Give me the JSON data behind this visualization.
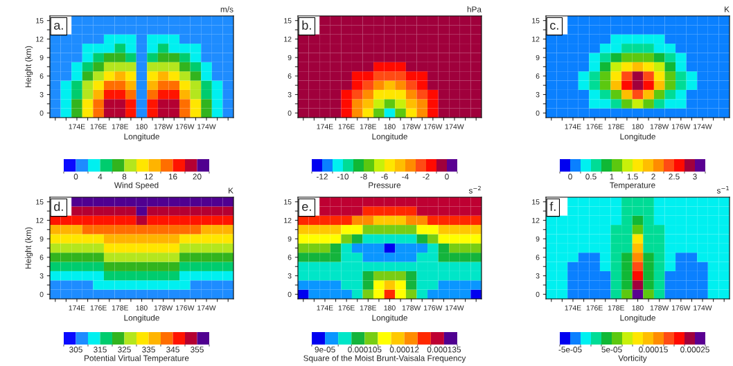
{
  "chart_data": [
    {
      "type": "heatmap",
      "title": "a.",
      "subtitle": "m/s",
      "xlabel": "Longitude",
      "ylabel": "Height (km)",
      "clabel": "Wind Speed",
      "categories": [
        null,
        null,
        "174E",
        null,
        "176E",
        null,
        "178E",
        null,
        "180",
        null,
        "178W",
        null,
        "176W",
        null,
        "174W",
        null,
        null
      ],
      "y_categories": [
        "15",
        null,
        "12",
        null,
        "9",
        null,
        "6",
        null,
        "3",
        null,
        "0"
      ],
      "clim": [
        -2,
        22
      ],
      "cticks": [
        0,
        4,
        8,
        12,
        16,
        20
      ],
      "colors": [
        "#0a0aff",
        "#1e8cff",
        "#00f0f0",
        "#00cc6e",
        "#32b41e",
        "#b4e61e",
        "#ffe600",
        "#ffb400",
        "#ff6e00",
        "#ff1400",
        "#b40032",
        "#500090"
      ],
      "cells": [
        [
          null,
          null,
          1,
          1,
          1,
          1,
          1,
          1,
          1,
          1,
          1,
          1,
          1,
          1,
          1,
          1,
          1
        ],
        [
          null,
          null,
          1,
          1,
          1,
          1,
          1,
          1,
          1,
          1,
          1,
          1,
          1,
          1,
          1,
          1,
          1
        ],
        [
          1,
          1,
          1,
          1,
          1,
          3,
          3,
          3,
          1,
          3,
          3,
          3,
          1,
          1,
          1,
          1,
          1
        ],
        [
          1,
          1,
          1,
          3,
          3,
          3,
          5,
          3,
          1,
          3,
          5,
          3,
          3,
          3,
          1,
          1,
          1
        ],
        [
          1,
          1,
          1,
          3,
          5,
          7,
          7,
          5,
          1,
          5,
          7,
          7,
          5,
          3,
          1,
          1,
          1
        ],
        [
          1,
          1,
          3,
          5,
          7,
          9,
          9,
          9,
          1,
          9,
          9,
          9,
          7,
          5,
          3,
          1,
          1
        ],
        [
          1,
          1,
          3,
          7,
          9,
          11,
          13,
          11,
          1,
          11,
          13,
          11,
          9,
          7,
          3,
          1,
          1
        ],
        [
          1,
          3,
          5,
          9,
          11,
          15,
          15,
          13,
          1,
          13,
          15,
          15,
          11,
          9,
          5,
          3,
          1
        ],
        [
          1,
          3,
          5,
          9,
          13,
          17,
          17,
          15,
          1,
          15,
          17,
          17,
          13,
          9,
          5,
          3,
          1
        ],
        [
          1,
          3,
          7,
          11,
          15,
          19,
          19,
          17,
          1,
          17,
          19,
          19,
          15,
          11,
          7,
          3,
          1
        ],
        [
          1,
          3,
          7,
          11,
          15,
          19,
          19,
          17,
          1,
          17,
          19,
          19,
          15,
          11,
          7,
          3,
          1
        ]
      ]
    },
    {
      "type": "heatmap",
      "title": "b.",
      "subtitle": "hPa",
      "xlabel": "Longitude",
      "clabel": "Pressure",
      "categories": [
        null,
        null,
        "174E",
        null,
        "176E",
        null,
        "178E",
        null,
        "180",
        null,
        "178W",
        null,
        "176W",
        null,
        "174W",
        null,
        null
      ],
      "y_categories": [
        "15",
        null,
        "12",
        null,
        "9",
        null,
        "6",
        null,
        "3",
        null,
        "0"
      ],
      "clim": [
        -13,
        1
      ],
      "cticks": [
        -12,
        -10,
        -8,
        -6,
        -4,
        -2,
        0
      ],
      "colors": [
        "#0000f0",
        "#0a80ff",
        "#00f0f0",
        "#00dc96",
        "#10b836",
        "#5cc810",
        "#c8f00a",
        "#ffe600",
        "#ffbe00",
        "#ff8c00",
        "#ff4b14",
        "#ff0a00",
        "#a0003c",
        "#5a0091"
      ],
      "cells": [
        [
          null,
          null,
          -0.5,
          -0.5,
          -0.5,
          -0.5,
          -0.5,
          -0.5,
          -0.5,
          -0.5,
          -0.5,
          -0.5,
          -0.5,
          -0.5,
          -0.5,
          -0.5,
          -0.5
        ],
        [
          null,
          null,
          -0.5,
          -0.5,
          -0.5,
          -0.5,
          -0.5,
          -0.5,
          -0.5,
          -0.5,
          -0.5,
          -0.5,
          -0.5,
          -0.5,
          -0.5,
          -0.5,
          -0.5
        ],
        [
          -0.5,
          -0.5,
          -0.5,
          -0.5,
          -0.5,
          -0.5,
          -0.5,
          -0.5,
          -0.5,
          -0.5,
          -0.5,
          -0.5,
          -0.5,
          -0.5,
          -0.5,
          -0.5,
          -0.5
        ],
        [
          -0.5,
          -0.5,
          -0.5,
          -0.5,
          -0.5,
          -0.5,
          -0.5,
          -0.5,
          -0.5,
          -0.5,
          -0.5,
          -0.5,
          -0.5,
          -0.5,
          -0.5,
          -0.5,
          -0.5
        ],
        [
          -0.5,
          -0.5,
          -0.5,
          -0.5,
          -0.5,
          -0.5,
          -0.5,
          -0.5,
          -0.5,
          -0.5,
          -0.5,
          -0.5,
          -0.5,
          -0.5,
          -0.5,
          -0.5,
          -0.5
        ],
        [
          -0.5,
          -0.5,
          -0.5,
          -0.5,
          -0.5,
          -0.5,
          -0.5,
          -1.5,
          -1.5,
          -1.5,
          -0.5,
          -0.5,
          -0.5,
          -0.5,
          -0.5,
          -0.5,
          -0.5
        ],
        [
          -0.5,
          -0.5,
          -0.5,
          -0.5,
          -0.5,
          -1.5,
          -1.5,
          -2.5,
          -2.5,
          -2.5,
          -1.5,
          -1.5,
          -0.5,
          -0.5,
          -0.5,
          -0.5,
          -0.5
        ],
        [
          -0.5,
          -0.5,
          -0.5,
          -0.5,
          -0.5,
          -1.5,
          -2.5,
          -3.5,
          -4.5,
          -3.5,
          -2.5,
          -1.5,
          -0.5,
          -0.5,
          -0.5,
          -0.5,
          -0.5
        ],
        [
          -0.5,
          -0.5,
          -0.5,
          -0.5,
          -1.5,
          -2.5,
          -3.5,
          -5.5,
          -5.5,
          -5.5,
          -3.5,
          -2.5,
          -1.5,
          -0.5,
          -0.5,
          -0.5,
          -0.5
        ],
        [
          -0.5,
          -0.5,
          -0.5,
          -0.5,
          -1.5,
          -3.5,
          -4.5,
          -6.5,
          -7.5,
          -6.5,
          -4.5,
          -3.5,
          -1.5,
          -0.5,
          -0.5,
          -0.5,
          -0.5
        ],
        [
          -0.5,
          -0.5,
          -0.5,
          -0.5,
          -1.5,
          -3.5,
          -5.5,
          -7.5,
          -10.5,
          -7.5,
          -5.5,
          -3.5,
          -1.5,
          -0.5,
          -0.5,
          -0.5,
          -0.5
        ]
      ]
    },
    {
      "type": "heatmap",
      "title": "c.",
      "subtitle": "K",
      "xlabel": "Longitude",
      "clabel": "Temperature",
      "categories": [
        null,
        null,
        "174E",
        null,
        "176E",
        null,
        "178E",
        null,
        "180",
        null,
        "178W",
        null,
        "176W",
        null,
        "174W",
        null,
        null
      ],
      "y_categories": [
        "15",
        null,
        "12",
        null,
        "9",
        null,
        "6",
        null,
        "3",
        null,
        "0"
      ],
      "clim": [
        -0.25,
        3.25
      ],
      "cticks": [
        0,
        0.5,
        1,
        1.5,
        2,
        2.5,
        3
      ],
      "colors": [
        "#0000f0",
        "#0a80ff",
        "#00f0f0",
        "#00dc96",
        "#10b836",
        "#5cc810",
        "#c8f00a",
        "#ffe600",
        "#ffbe00",
        "#ff8c00",
        "#ff4b14",
        "#ff0a00",
        "#a0003c",
        "#5a0091"
      ],
      "cells": [
        [
          null,
          null,
          0.125,
          0.125,
          0.125,
          0.125,
          0.125,
          0.125,
          0.125,
          0.125,
          0.125,
          0.125,
          0.125,
          0.125,
          0.125,
          0.125,
          0.125
        ],
        [
          null,
          null,
          0.125,
          0.125,
          0.125,
          0.125,
          0.125,
          0.125,
          0.125,
          0.125,
          0.125,
          0.125,
          0.125,
          0.125,
          0.125,
          0.125,
          0.125
        ],
        [
          0.125,
          0.125,
          0.125,
          0.125,
          0.125,
          0.125,
          0.375,
          0.375,
          0.375,
          0.375,
          0.375,
          0.125,
          0.125,
          0.125,
          0.125,
          0.125,
          0.125
        ],
        [
          0.125,
          0.125,
          0.125,
          0.125,
          0.125,
          0.375,
          0.375,
          0.625,
          0.625,
          0.625,
          0.375,
          0.375,
          0.125,
          0.125,
          0.125,
          0.125,
          0.125
        ],
        [
          0.125,
          0.125,
          0.125,
          0.125,
          0.375,
          0.625,
          0.875,
          1.125,
          1.125,
          1.125,
          0.875,
          0.625,
          0.375,
          0.125,
          0.125,
          0.125,
          0.125
        ],
        [
          0.125,
          0.125,
          0.125,
          0.125,
          0.375,
          0.875,
          1.375,
          1.625,
          1.875,
          1.625,
          1.375,
          0.875,
          0.375,
          0.125,
          0.125,
          0.125,
          0.125
        ],
        [
          0.125,
          0.125,
          0.125,
          0.375,
          0.625,
          1.125,
          1.625,
          2.375,
          2.875,
          2.375,
          1.625,
          1.125,
          0.625,
          0.375,
          0.125,
          0.125,
          0.125
        ],
        [
          0.125,
          0.125,
          0.125,
          0.375,
          0.625,
          1.125,
          1.875,
          2.625,
          2.875,
          2.625,
          1.875,
          1.125,
          0.625,
          0.375,
          0.125,
          0.125,
          0.125
        ],
        [
          0.125,
          0.125,
          0.125,
          0.125,
          0.375,
          0.625,
          1.125,
          1.875,
          2.375,
          1.875,
          1.125,
          0.625,
          0.375,
          0.125,
          0.125,
          0.125,
          0.125
        ],
        [
          0.125,
          0.125,
          0.125,
          0.125,
          0.375,
          0.375,
          0.625,
          1.125,
          1.375,
          1.125,
          0.625,
          0.375,
          0.375,
          0.125,
          0.125,
          0.125,
          0.125
        ],
        [
          0.125,
          0.125,
          0.125,
          0.125,
          0.125,
          0.125,
          0.125,
          0.125,
          0.125,
          0.125,
          0.125,
          0.125,
          0.125,
          0.125,
          0.125,
          0.125,
          0.125
        ]
      ]
    },
    {
      "type": "heatmap",
      "title": "d.",
      "subtitle": "K",
      "xlabel": "Longitude",
      "ylabel": "Height (km)",
      "clabel": "Potential Virtual Temperature",
      "categories": [
        null,
        null,
        "174E",
        null,
        "176E",
        null,
        "178E",
        null,
        "180",
        null,
        "178W",
        null,
        "176W",
        null,
        "174W",
        null,
        null
      ],
      "y_categories": [
        "15",
        null,
        "12",
        null,
        "9",
        null,
        "6",
        null,
        "3",
        null,
        "0"
      ],
      "clim": [
        300,
        360
      ],
      "cticks": [
        305,
        315,
        325,
        335,
        345,
        355
      ],
      "colors": [
        "#0a0aff",
        "#1e8cff",
        "#00f0f0",
        "#00cc6e",
        "#32b41e",
        "#b4e61e",
        "#ffe600",
        "#ffb400",
        "#ff6e00",
        "#ff1400",
        "#b40032",
        "#500090"
      ],
      "cells": [
        [
          null,
          null,
          357.5,
          357.5,
          357.5,
          357.5,
          357.5,
          357.5,
          357.5,
          357.5,
          357.5,
          357.5,
          357.5,
          357.5,
          357.5,
          357.5,
          357.5
        ],
        [
          null,
          null,
          352.5,
          352.5,
          352.5,
          352.5,
          352.5,
          352.5,
          357.5,
          352.5,
          352.5,
          352.5,
          352.5,
          352.5,
          352.5,
          352.5,
          352.5
        ],
        [
          347.5,
          347.5,
          347.5,
          347.5,
          347.5,
          347.5,
          347.5,
          347.5,
          352.5,
          347.5,
          347.5,
          347.5,
          347.5,
          347.5,
          347.5,
          347.5,
          347.5
        ],
        [
          337.5,
          337.5,
          337.5,
          342.5,
          342.5,
          342.5,
          342.5,
          342.5,
          342.5,
          342.5,
          342.5,
          342.5,
          342.5,
          342.5,
          337.5,
          337.5,
          337.5
        ],
        [
          332.5,
          332.5,
          332.5,
          332.5,
          332.5,
          337.5,
          337.5,
          337.5,
          337.5,
          337.5,
          337.5,
          337.5,
          332.5,
          332.5,
          332.5,
          332.5,
          332.5
        ],
        [
          327.5,
          327.5,
          327.5,
          327.5,
          327.5,
          332.5,
          332.5,
          332.5,
          332.5,
          332.5,
          332.5,
          332.5,
          327.5,
          327.5,
          327.5,
          327.5,
          327.5
        ],
        [
          322.5,
          322.5,
          322.5,
          322.5,
          322.5,
          327.5,
          327.5,
          327.5,
          327.5,
          327.5,
          327.5,
          327.5,
          322.5,
          322.5,
          322.5,
          322.5,
          322.5
        ],
        [
          317.5,
          317.5,
          317.5,
          317.5,
          317.5,
          322.5,
          322.5,
          322.5,
          322.5,
          322.5,
          322.5,
          322.5,
          317.5,
          317.5,
          317.5,
          317.5,
          317.5
        ],
        [
          312.5,
          312.5,
          312.5,
          312.5,
          312.5,
          317.5,
          317.5,
          317.5,
          317.5,
          317.5,
          317.5,
          317.5,
          312.5,
          312.5,
          312.5,
          312.5,
          312.5
        ],
        [
          307.5,
          307.5,
          307.5,
          307.5,
          312.5,
          312.5,
          312.5,
          312.5,
          312.5,
          312.5,
          312.5,
          312.5,
          312.5,
          307.5,
          307.5,
          307.5,
          307.5
        ],
        [
          307.5,
          307.5,
          307.5,
          307.5,
          307.5,
          307.5,
          307.5,
          307.5,
          307.5,
          307.5,
          307.5,
          307.5,
          307.5,
          307.5,
          307.5,
          307.5,
          307.5
        ]
      ]
    },
    {
      "type": "heatmap",
      "title": "e.",
      "subtitle": "s$^{−2}$",
      "xlabel": "Longitude",
      "clabel": "Square of the Moist Brunt-Vaisala Frequency",
      "categories": [
        null,
        null,
        "174E",
        null,
        "176E",
        null,
        "178E",
        null,
        "180",
        null,
        "178W",
        null,
        "176W",
        null,
        "174W",
        null,
        null
      ],
      "y_categories": [
        "15",
        null,
        "12",
        null,
        "9",
        null,
        "6",
        null,
        "3",
        null,
        "0"
      ],
      "clim": [
        8.5e-05,
        0.00014
      ],
      "cticks": [
        9e-05,
        0.000105,
        0.00012,
        0.000135
      ],
      "colors": [
        "#0000f0",
        "#0a96ff",
        "#00e6c8",
        "#14b43c",
        "#78cd14",
        "#ffff00",
        "#ffc800",
        "#ff8c00",
        "#ff2800",
        "#be0032",
        "#500090"
      ],
      "cells": [
        [
          null,
          null,
          0.0001325,
          0.0001325,
          0.0001325,
          0.0001325,
          0.0001325,
          0.0001325,
          0.0001325,
          0.0001325,
          0.0001325,
          0.0001325,
          0.0001325,
          0.0001325,
          0.0001325,
          0.0001325,
          0.0001325
        ],
        [
          null,
          null,
          0.0001325,
          0.0001325,
          0.0001325,
          0.0001325,
          0.0001275,
          0.0001275,
          0.0001275,
          0.0001275,
          0.0001275,
          0.0001325,
          0.0001325,
          0.0001325,
          0.0001325,
          0.0001325,
          0.0001325
        ],
        [
          0.0001275,
          0.0001275,
          0.0001275,
          0.0001275,
          0.0001275,
          0.0001225,
          0.0001225,
          0.0001175,
          0.0001175,
          0.0001175,
          0.0001225,
          0.0001225,
          0.0001275,
          0.0001275,
          0.0001275,
          0.0001275,
          0.0001275
        ],
        [
          0.0001175,
          0.0001175,
          0.0001175,
          0.0001175,
          0.0001125,
          0.0001125,
          0.0001075,
          0.0001075,
          0.0001075,
          0.0001075,
          0.0001075,
          0.0001125,
          0.0001125,
          0.0001175,
          0.0001175,
          0.0001175,
          0.0001175
        ],
        [
          0.0001125,
          0.0001125,
          0.0001125,
          0.0001125,
          0.0001075,
          0.0001025,
          9.75e-05,
          9.75e-05,
          9.75e-05,
          9.75e-05,
          9.75e-05,
          0.0001025,
          0.0001075,
          0.0001125,
          0.0001125,
          0.0001125,
          0.0001125
        ],
        [
          0.0001075,
          0.0001075,
          0.0001075,
          0.0001025,
          9.75e-05,
          9.25e-05,
          9.25e-05,
          9.25e-05,
          8.75e-05,
          9.25e-05,
          9.25e-05,
          9.25e-05,
          9.75e-05,
          0.0001025,
          0.0001075,
          0.0001075,
          0.0001075
        ],
        [
          0.0001025,
          0.0001025,
          0.0001025,
          0.0001025,
          9.75e-05,
          9.75e-05,
          9.25e-05,
          9.25e-05,
          9.25e-05,
          9.25e-05,
          9.25e-05,
          9.75e-05,
          9.75e-05,
          0.0001025,
          0.0001025,
          0.0001025,
          0.0001025
        ],
        [
          9.75e-05,
          9.75e-05,
          9.75e-05,
          9.75e-05,
          9.75e-05,
          9.75e-05,
          9.75e-05,
          9.75e-05,
          9.75e-05,
          9.75e-05,
          9.75e-05,
          9.75e-05,
          9.75e-05,
          9.75e-05,
          9.75e-05,
          9.75e-05,
          9.75e-05
        ],
        [
          9.75e-05,
          9.75e-05,
          9.75e-05,
          9.75e-05,
          9.75e-05,
          9.75e-05,
          0.0001025,
          0.0001075,
          0.0001075,
          0.0001075,
          0.0001025,
          9.75e-05,
          9.75e-05,
          9.75e-05,
          9.75e-05,
          9.75e-05,
          9.75e-05
        ],
        [
          9.25e-05,
          9.25e-05,
          9.25e-05,
          9.25e-05,
          9.75e-05,
          9.75e-05,
          0.0001025,
          0.0001125,
          0.0001175,
          0.0001125,
          0.0001025,
          9.75e-05,
          9.75e-05,
          9.25e-05,
          9.25e-05,
          9.25e-05,
          9.25e-05
        ],
        [
          8.75e-05,
          9.25e-05,
          9.25e-05,
          9.25e-05,
          9.25e-05,
          9.75e-05,
          0.0001075,
          0.0001125,
          0.0001275,
          0.0001125,
          0.0001075,
          9.75e-05,
          9.25e-05,
          9.25e-05,
          9.25e-05,
          9.25e-05,
          8.75e-05
        ]
      ]
    },
    {
      "type": "heatmap",
      "title": "f.",
      "subtitle": "s$^{−1}$",
      "xlabel": "Longitude",
      "clabel": "Vorticity",
      "categories": [
        null,
        null,
        "174E",
        null,
        "176E",
        null,
        "178E",
        null,
        "180",
        null,
        "178W",
        null,
        "176W",
        null,
        "174W",
        null,
        null
      ],
      "y_categories": [
        "15",
        null,
        "12",
        null,
        "9",
        null,
        "6",
        null,
        "3",
        null,
        "0"
      ],
      "clim": [
        -7.5e-05,
        0.000275
      ],
      "cticks": [
        -5e-05,
        5e-05,
        0.00015,
        0.00025
      ],
      "colors": [
        "#0000f0",
        "#0a80ff",
        "#00f0f0",
        "#00dc96",
        "#10b836",
        "#5cc810",
        "#c8f00a",
        "#ffe600",
        "#ffbe00",
        "#ff8c00",
        "#ff4b14",
        "#ff0a00",
        "#a0003c",
        "#5a0091"
      ],
      "cells": [
        [
          null,
          null,
          -1.25e-05,
          -1.25e-05,
          -1.25e-05,
          -1.25e-05,
          -1.25e-05,
          1.25e-05,
          1.25e-05,
          1.25e-05,
          -1.25e-05,
          -1.25e-05,
          -1.25e-05,
          -1.25e-05,
          -1.25e-05,
          -1.25e-05,
          -1.25e-05
        ],
        [
          null,
          null,
          -1.25e-05,
          -1.25e-05,
          -1.25e-05,
          -1.25e-05,
          -1.25e-05,
          1.25e-05,
          1.25e-05,
          1.25e-05,
          -1.25e-05,
          -1.25e-05,
          -1.25e-05,
          -1.25e-05,
          -1.25e-05,
          -1.25e-05,
          -1.25e-05
        ],
        [
          -1.25e-05,
          -1.25e-05,
          -1.25e-05,
          -1.25e-05,
          -1.25e-05,
          -1.25e-05,
          -1.25e-05,
          1.25e-05,
          3.75e-05,
          1.25e-05,
          -1.25e-05,
          -1.25e-05,
          -1.25e-05,
          -1.25e-05,
          -1.25e-05,
          -1.25e-05,
          -1.25e-05
        ],
        [
          -1.25e-05,
          -1.25e-05,
          -1.25e-05,
          -1.25e-05,
          -1.25e-05,
          -1.25e-05,
          1.25e-05,
          1.25e-05,
          6.25e-05,
          1.25e-05,
          1.25e-05,
          -1.25e-05,
          -1.25e-05,
          -1.25e-05,
          -1.25e-05,
          -1.25e-05,
          -1.25e-05
        ],
        [
          -1.25e-05,
          -1.25e-05,
          -1.25e-05,
          -1.25e-05,
          -1.25e-05,
          -1.25e-05,
          1.25e-05,
          1.25e-05,
          0.0001125,
          1.25e-05,
          1.25e-05,
          -1.25e-05,
          -1.25e-05,
          -1.25e-05,
          -1.25e-05,
          -1.25e-05,
          -1.25e-05
        ],
        [
          -1.25e-05,
          -1.25e-05,
          -1.25e-05,
          -1.25e-05,
          -1.25e-05,
          -1.25e-05,
          1.25e-05,
          1.25e-05,
          0.0001375,
          1.25e-05,
          1.25e-05,
          -1.25e-05,
          -1.25e-05,
          -1.25e-05,
          -1.25e-05,
          -1.25e-05,
          -1.25e-05
        ],
        [
          -1.25e-05,
          -1.25e-05,
          -1.25e-05,
          -3.75e-05,
          -3.75e-05,
          -1.25e-05,
          1.25e-05,
          3.75e-05,
          0.0001625,
          3.75e-05,
          1.25e-05,
          -1.25e-05,
          -3.75e-05,
          -3.75e-05,
          -1.25e-05,
          -1.25e-05,
          -1.25e-05
        ],
        [
          -1.25e-05,
          -1.25e-05,
          -3.75e-05,
          -3.75e-05,
          -3.75e-05,
          -1.25e-05,
          1.25e-05,
          3.75e-05,
          0.0001875,
          3.75e-05,
          1.25e-05,
          -1.25e-05,
          -3.75e-05,
          -3.75e-05,
          -3.75e-05,
          -1.25e-05,
          -1.25e-05
        ],
        [
          -1.25e-05,
          -1.25e-05,
          -3.75e-05,
          -3.75e-05,
          -3.75e-05,
          -3.75e-05,
          1.25e-05,
          3.75e-05,
          0.0002125,
          3.75e-05,
          1.25e-05,
          -3.75e-05,
          -3.75e-05,
          -3.75e-05,
          -3.75e-05,
          -1.25e-05,
          -1.25e-05
        ],
        [
          -1.25e-05,
          -1.25e-05,
          -3.75e-05,
          -3.75e-05,
          -3.75e-05,
          -3.75e-05,
          1.25e-05,
          3.75e-05,
          0.0002375,
          3.75e-05,
          1.25e-05,
          -3.75e-05,
          -3.75e-05,
          -3.75e-05,
          -3.75e-05,
          -1.25e-05,
          -1.25e-05
        ],
        [
          -1.25e-05,
          -1.25e-05,
          -3.75e-05,
          -3.75e-05,
          -3.75e-05,
          -3.75e-05,
          1.25e-05,
          6.25e-05,
          0.0002625,
          6.25e-05,
          1.25e-05,
          -3.75e-05,
          -3.75e-05,
          -3.75e-05,
          -3.75e-05,
          -1.25e-05,
          -1.25e-05
        ]
      ]
    }
  ]
}
